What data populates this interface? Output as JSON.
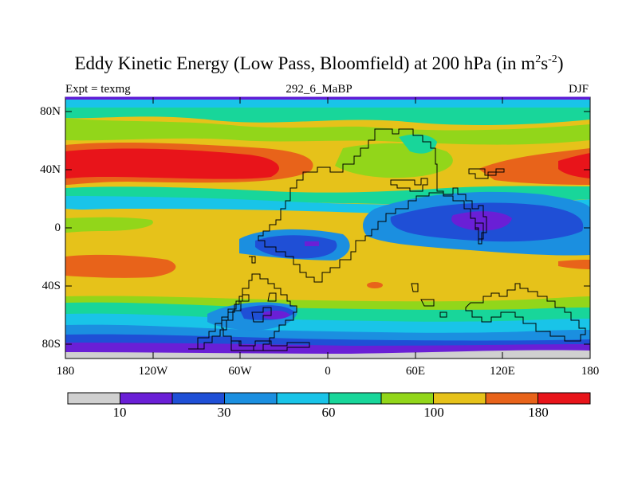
{
  "figure": {
    "title_main": "Eddy Kinetic Energy (Low Pass, Bloomfield) at 200 hPa (in m",
    "title_sup1": "2",
    "title_mid": "s",
    "title_sup2": "-2",
    "title_end": ")",
    "left_label": "Expt = texmg",
    "center_label": "292_6_MaBP",
    "right_label": "DJF"
  },
  "axes": {
    "lat_labels": [
      "80N",
      "40N",
      "0",
      "40S",
      "80S"
    ],
    "lon_labels": [
      "180",
      "120W",
      "60W",
      "0",
      "60E",
      "120E",
      "180"
    ]
  },
  "colorbar": {
    "colors": [
      "#d0d0d0",
      "#6a1fd6",
      "#1f4fd6",
      "#1b8fe0",
      "#19c4e8",
      "#18d69a",
      "#92d61a",
      "#e6c21a",
      "#e8631a",
      "#e8141a"
    ],
    "labels": [
      "10",
      "30",
      "60",
      "100",
      "180"
    ]
  }
}
